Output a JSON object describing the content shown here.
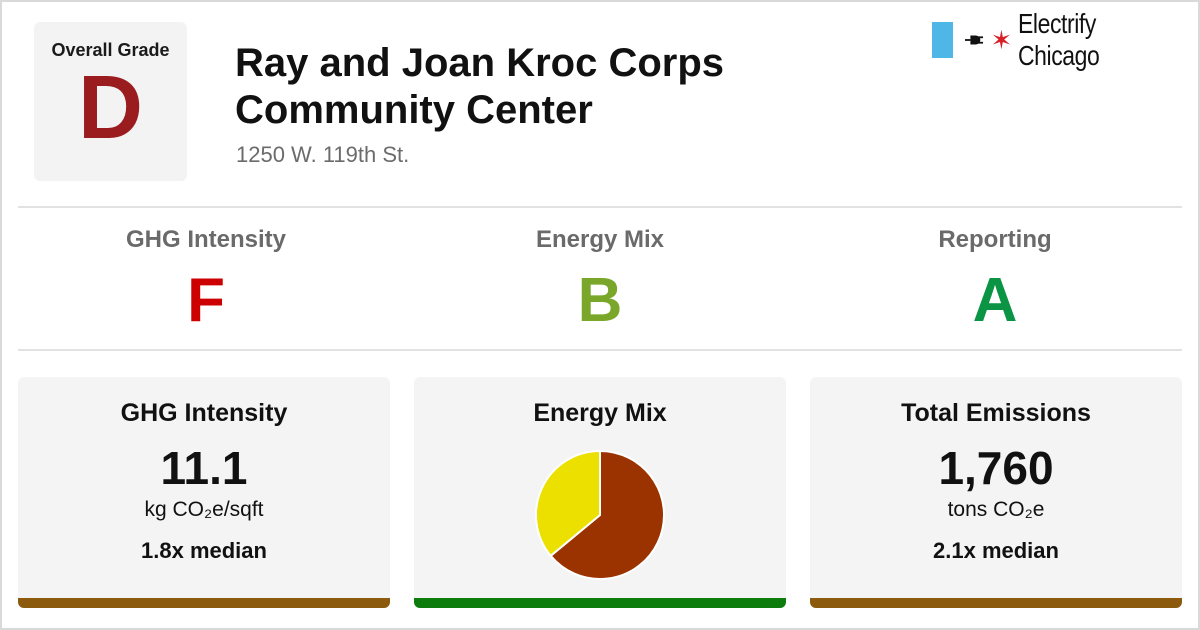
{
  "overall": {
    "label": "Overall Grade",
    "grade": "D",
    "color": "#9b1c1f"
  },
  "building": {
    "name_line1": "Ray and Joan Kroc Corps",
    "name_line2": "Community Center",
    "address": "1250 W. 119th St."
  },
  "brand": {
    "name": "Electrify Chicago",
    "flag_color": "#4fb6e8",
    "star": "✶",
    "icons": [
      "plug-icon",
      "star-icon"
    ]
  },
  "grades": [
    {
      "label": "GHG Intensity",
      "grade": "F",
      "color": "#cc0000"
    },
    {
      "label": "Energy Mix",
      "grade": "B",
      "color": "#7aa629"
    },
    {
      "label": "Reporting",
      "grade": "A",
      "color": "#0a9444"
    }
  ],
  "cards": {
    "ghg": {
      "heading": "GHG Intensity",
      "value": "11.1",
      "unit": "kg CO₂e/sqft",
      "median": "1.8x median",
      "bar_color": "#8b5a0c"
    },
    "mix": {
      "heading": "Energy Mix",
      "bar_color": "#0c7d0c"
    },
    "emissions": {
      "heading": "Total Emissions",
      "value": "1,760",
      "unit": "tons CO₂e",
      "median": "2.1x median",
      "bar_color": "#8b5a0c"
    }
  },
  "chart_data": {
    "type": "pie",
    "slices": [
      {
        "value": 64,
        "color": "#9a3300"
      },
      {
        "value": 36,
        "color": "#ece000"
      }
    ]
  }
}
